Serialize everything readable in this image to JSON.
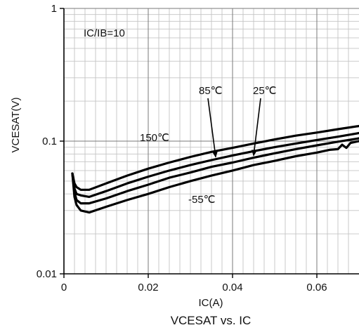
{
  "chart_data": {
    "type": "line",
    "title": "VCESAT vs. IC",
    "xlabel": "IC(A)",
    "ylabel": "VCESAT(V)",
    "x_scale": "linear",
    "y_scale": "log",
    "xlim": [
      0,
      0.07
    ],
    "ylim": [
      0.01,
      1
    ],
    "x_ticks": [
      0,
      0.02,
      0.04,
      0.06
    ],
    "x_tick_labels": [
      "0",
      "0.02",
      "0.04",
      "0.06"
    ],
    "y_ticks": [
      0.01,
      0.1,
      1
    ],
    "y_tick_labels": [
      "0.01",
      "0.1",
      "1"
    ],
    "grid": true,
    "condition_label": "IC/IB=10",
    "series": [
      {
        "name": "150℃",
        "x": [
          0.002,
          0.0025,
          0.003,
          0.004,
          0.006,
          0.01,
          0.015,
          0.02,
          0.025,
          0.03,
          0.035,
          0.04,
          0.045,
          0.05,
          0.055,
          0.06,
          0.065,
          0.07
        ],
        "y": [
          0.057,
          0.048,
          0.045,
          0.043,
          0.043,
          0.048,
          0.055,
          0.062,
          0.069,
          0.076,
          0.083,
          0.089,
          0.096,
          0.103,
          0.11,
          0.116,
          0.123,
          0.13
        ]
      },
      {
        "name": "85℃",
        "x": [
          0.002,
          0.0025,
          0.003,
          0.004,
          0.006,
          0.01,
          0.015,
          0.02,
          0.025,
          0.03,
          0.035,
          0.04,
          0.045,
          0.05,
          0.055,
          0.06,
          0.065,
          0.07
        ],
        "y": [
          0.057,
          0.044,
          0.04,
          0.039,
          0.038,
          0.042,
          0.048,
          0.054,
          0.06,
          0.066,
          0.072,
          0.078,
          0.084,
          0.09,
          0.096,
          0.102,
          0.108,
          0.115
        ]
      },
      {
        "name": "25℃",
        "x": [
          0.002,
          0.0025,
          0.003,
          0.004,
          0.006,
          0.01,
          0.015,
          0.02,
          0.025,
          0.03,
          0.035,
          0.04,
          0.045,
          0.05,
          0.055,
          0.06,
          0.065,
          0.07
        ],
        "y": [
          0.057,
          0.041,
          0.036,
          0.034,
          0.034,
          0.037,
          0.042,
          0.047,
          0.053,
          0.058,
          0.064,
          0.069,
          0.075,
          0.081,
          0.087,
          0.093,
          0.099,
          0.105
        ]
      },
      {
        "name": "-55℃",
        "x": [
          0.002,
          0.0025,
          0.003,
          0.004,
          0.006,
          0.01,
          0.015,
          0.02,
          0.025,
          0.03,
          0.035,
          0.04,
          0.045,
          0.05,
          0.055,
          0.06,
          0.063,
          0.065,
          0.066,
          0.067,
          0.068,
          0.07
        ],
        "y": [
          0.057,
          0.038,
          0.033,
          0.03,
          0.029,
          0.032,
          0.036,
          0.04,
          0.045,
          0.05,
          0.055,
          0.06,
          0.066,
          0.071,
          0.077,
          0.082,
          0.086,
          0.087,
          0.094,
          0.089,
          0.097,
          0.1
        ]
      }
    ],
    "annotations": [
      {
        "text": "150℃",
        "series": "150℃"
      },
      {
        "text": "85℃",
        "series": "85℃",
        "arrow_to_x": 0.036
      },
      {
        "text": "25℃",
        "series": "25℃",
        "arrow_to_x": 0.045
      },
      {
        "text": "-55℃",
        "series": "-55℃"
      }
    ]
  }
}
